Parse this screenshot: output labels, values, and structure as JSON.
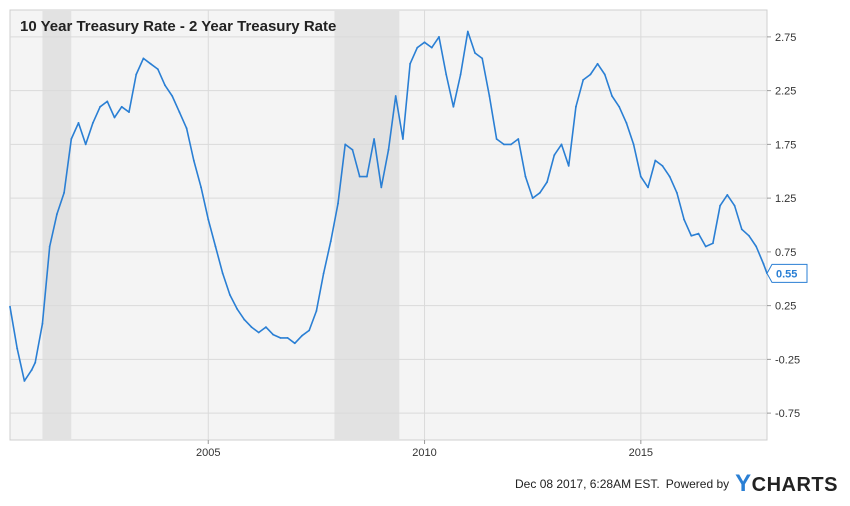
{
  "chart_data": {
    "type": "line",
    "title": "10 Year Treasury Rate - 2 Year Treasury Rate",
    "xlabel": "",
    "ylabel": "",
    "x_ticks": [
      "2005",
      "2010",
      "2015"
    ],
    "y_ticks": [
      "2.75",
      "2.25",
      "1.75",
      "1.25",
      "0.75",
      "0.25",
      "-0.25",
      "-0.75"
    ],
    "ylim": [
      -1.0,
      3.0
    ],
    "xlim": [
      "2000-06",
      "2017-12"
    ],
    "grid": true,
    "line_color": "#2a7fd4",
    "recession_color": "#e2e2e2",
    "recessions": [
      [
        "2001-03",
        "2001-11"
      ],
      [
        "2007-12",
        "2009-06"
      ]
    ],
    "last_value_label": "0.55",
    "series": [
      {
        "x": [
          "2000-06",
          "2000-08",
          "2000-10",
          "2000-12",
          "2001-01",
          "2001-03",
          "2001-05",
          "2001-07",
          "2001-09",
          "2001-11",
          "2002-01",
          "2002-03",
          "2002-05",
          "2002-07",
          "2002-09",
          "2002-11",
          "2003-01",
          "2003-03",
          "2003-05",
          "2003-07",
          "2003-09",
          "2003-11",
          "2004-01",
          "2004-03",
          "2004-05",
          "2004-07",
          "2004-09",
          "2004-11",
          "2005-01",
          "2005-03",
          "2005-05",
          "2005-07",
          "2005-09",
          "2005-11",
          "2006-01",
          "2006-03",
          "2006-05",
          "2006-07",
          "2006-09",
          "2006-11",
          "2007-01",
          "2007-03",
          "2007-05",
          "2007-07",
          "2007-09",
          "2007-11",
          "2008-01",
          "2008-03",
          "2008-05",
          "2008-07",
          "2008-09",
          "2008-11",
          "2009-01",
          "2009-03",
          "2009-05",
          "2009-07",
          "2009-09",
          "2009-11",
          "2010-01",
          "2010-03",
          "2010-05",
          "2010-07",
          "2010-09",
          "2010-11",
          "2011-01",
          "2011-03",
          "2011-05",
          "2011-07",
          "2011-09",
          "2011-11",
          "2012-01",
          "2012-03",
          "2012-05",
          "2012-07",
          "2012-09",
          "2012-11",
          "2013-01",
          "2013-03",
          "2013-05",
          "2013-07",
          "2013-09",
          "2013-11",
          "2014-01",
          "2014-03",
          "2014-05",
          "2014-07",
          "2014-09",
          "2014-11",
          "2015-01",
          "2015-03",
          "2015-05",
          "2015-07",
          "2015-09",
          "2015-11",
          "2016-01",
          "2016-03",
          "2016-05",
          "2016-07",
          "2016-09",
          "2016-11",
          "2017-01",
          "2017-03",
          "2017-05",
          "2017-07",
          "2017-09",
          "2017-11",
          "2017-12"
        ],
        "y": [
          0.24,
          -0.15,
          -0.45,
          -0.35,
          -0.28,
          0.08,
          0.8,
          1.1,
          1.3,
          1.8,
          1.95,
          1.75,
          1.95,
          2.1,
          2.15,
          2.0,
          2.1,
          2.05,
          2.4,
          2.55,
          2.5,
          2.45,
          2.3,
          2.2,
          2.05,
          1.9,
          1.6,
          1.35,
          1.05,
          0.8,
          0.55,
          0.35,
          0.22,
          0.12,
          0.05,
          0.0,
          0.05,
          -0.02,
          -0.05,
          -0.05,
          -0.1,
          -0.03,
          0.02,
          0.2,
          0.55,
          0.85,
          1.2,
          1.75,
          1.7,
          1.45,
          1.45,
          1.8,
          1.35,
          1.7,
          2.2,
          1.8,
          2.5,
          2.65,
          2.7,
          2.65,
          2.75,
          2.4,
          2.1,
          2.4,
          2.8,
          2.6,
          2.55,
          2.2,
          1.8,
          1.75,
          1.75,
          1.8,
          1.45,
          1.25,
          1.3,
          1.4,
          1.65,
          1.75,
          1.55,
          2.1,
          2.35,
          2.4,
          2.5,
          2.4,
          2.2,
          2.1,
          1.95,
          1.75,
          1.45,
          1.35,
          1.6,
          1.55,
          1.45,
          1.3,
          1.05,
          0.9,
          0.92,
          0.8,
          0.83,
          1.18,
          1.28,
          1.18,
          0.96,
          0.9,
          0.8,
          0.64,
          0.55
        ]
      }
    ]
  },
  "footer": {
    "timestamp": "Dec 08 2017, 6:28AM EST.",
    "powered_by": "Powered by",
    "brand_y": "Y",
    "brand_rest": "CHARTS"
  }
}
